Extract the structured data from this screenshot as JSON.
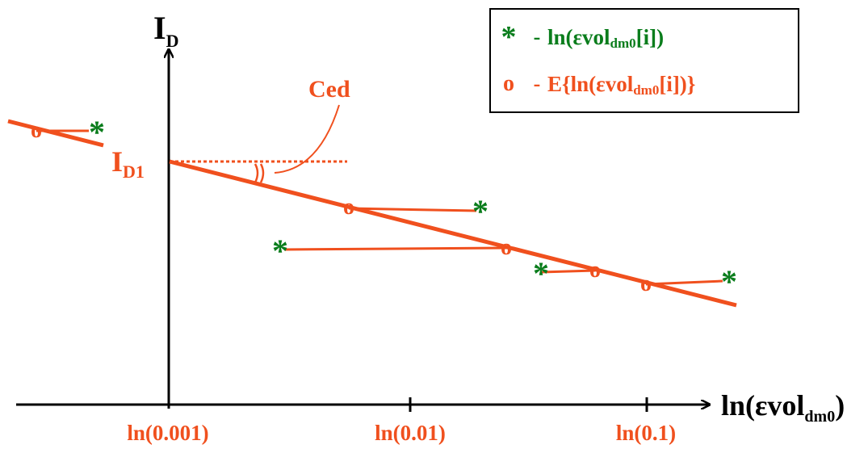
{
  "axes": {
    "y_label_main": "I",
    "y_label_sub": "D",
    "x_label_prefix": "ln(",
    "x_label_main": "εvol",
    "x_label_sub": "dm0",
    "x_label_suffix": ")",
    "x_ticks": [
      "ln(0.001)",
      "ln(0.01)",
      "ln(0.1)"
    ]
  },
  "annotations": {
    "intercept_main": "I",
    "intercept_sub": "D1",
    "slope_label": "Ced"
  },
  "legend": {
    "items": [
      {
        "symbol": "*",
        "dash": "-",
        "pre": "ln(εvol",
        "sub": "dm0",
        "post": "[i])",
        "color": "#0a7d1c"
      },
      {
        "symbol": "o",
        "dash": "-",
        "pre": "E{ln(εvol",
        "sub": "dm0",
        "post": "[i])}",
        "color": "#f0501e"
      }
    ]
  },
  "colors": {
    "axis": "#000000",
    "line": "#f0501e",
    "mean_marker": "#f0501e",
    "sample_marker": "#0a7d1c"
  },
  "markers": {
    "sample_symbol": "*",
    "mean_symbol": "o"
  }
}
